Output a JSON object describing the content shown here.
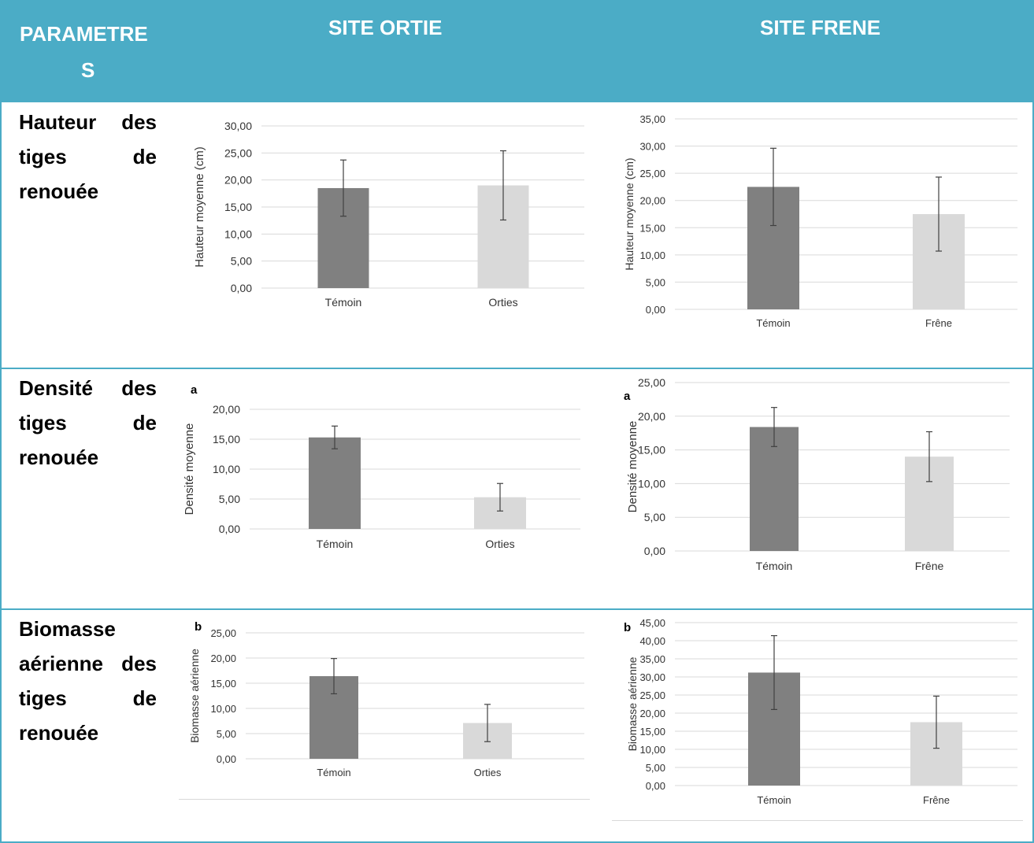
{
  "header": {
    "col1_line1": "PARAMETRE",
    "col1_line2": "S",
    "col2": "SITE ORTIE",
    "col3": "SITE FRENE"
  },
  "rows": [
    {
      "label_lines": [
        "Hauteur des",
        "tiges de",
        "renouée"
      ]
    },
    {
      "label_lines": [
        "Densité des",
        "tiges de",
        "renouée"
      ]
    },
    {
      "label_lines": [
        "Biomasse",
        "aérienne des",
        "tiges de",
        "renouée"
      ]
    }
  ],
  "colors": {
    "header_bg": "#4bacc6",
    "bar_temoin": "#808080",
    "bar_treatment": "#d9d9d9"
  },
  "chart_data": [
    {
      "id": "ortie-hauteur",
      "type": "bar",
      "panel_letter": "",
      "categories": [
        "Témoin",
        "Orties"
      ],
      "values": [
        18.5,
        19.0
      ],
      "errors": [
        5.2,
        6.4
      ],
      "ylabel": "Hauteur moyenne (cm)",
      "ylim": [
        0,
        30
      ],
      "yticks": [
        "0,00",
        "5,00",
        "10,00",
        "15,00",
        "20,00",
        "25,00",
        "30,00"
      ],
      "grid": true
    },
    {
      "id": "frene-hauteur",
      "type": "bar",
      "panel_letter": "",
      "categories": [
        "Témoin",
        "Frêne"
      ],
      "values": [
        22.5,
        17.5
      ],
      "errors": [
        7.1,
        6.8
      ],
      "ylabel": "Hauteur moyenne (cm)",
      "ylim": [
        0,
        35
      ],
      "yticks": [
        "0,00",
        "5,00",
        "10,00",
        "15,00",
        "20,00",
        "25,00",
        "30,00",
        "35,00"
      ],
      "grid": true
    },
    {
      "id": "ortie-densite",
      "type": "bar",
      "panel_letter": "a",
      "categories": [
        "Témoin",
        "Orties"
      ],
      "values": [
        15.3,
        5.3
      ],
      "errors": [
        1.9,
        2.3
      ],
      "ylabel": "Densité moyenne",
      "ylim": [
        0,
        20
      ],
      "yticks": [
        "0,00",
        "5,00",
        "10,00",
        "15,00",
        "20,00"
      ],
      "grid": true
    },
    {
      "id": "frene-densite",
      "type": "bar",
      "panel_letter": "a",
      "categories": [
        "Témoin",
        "Frêne"
      ],
      "values": [
        18.4,
        14.0
      ],
      "errors": [
        2.9,
        3.7
      ],
      "ylabel": "Densité moyenne",
      "ylim": [
        0,
        25
      ],
      "yticks": [
        "0,00",
        "5,00",
        "10,00",
        "15,00",
        "20,00",
        "25,00"
      ],
      "grid": true
    },
    {
      "id": "ortie-biomasse",
      "type": "bar",
      "panel_letter": "b",
      "categories": [
        "Témoin",
        "Orties"
      ],
      "values": [
        16.4,
        7.1
      ],
      "errors": [
        3.5,
        3.7
      ],
      "ylabel": "Biomasse aérienne",
      "ylim": [
        0,
        25
      ],
      "yticks": [
        "0,00",
        "5,00",
        "10,00",
        "15,00",
        "20,00",
        "25,00"
      ],
      "grid": true
    },
    {
      "id": "frene-biomasse",
      "type": "bar",
      "panel_letter": "b",
      "categories": [
        "Témoin",
        "Frêne"
      ],
      "values": [
        31.2,
        17.5
      ],
      "errors": [
        10.2,
        7.2
      ],
      "ylabel": "Biomasse aérienne",
      "ylim": [
        0,
        45
      ],
      "yticks": [
        "0,00",
        "5,00",
        "10,00",
        "15,00",
        "20,00",
        "25,00",
        "30,00",
        "35,00",
        "40,00",
        "45,00"
      ],
      "grid": true
    }
  ]
}
